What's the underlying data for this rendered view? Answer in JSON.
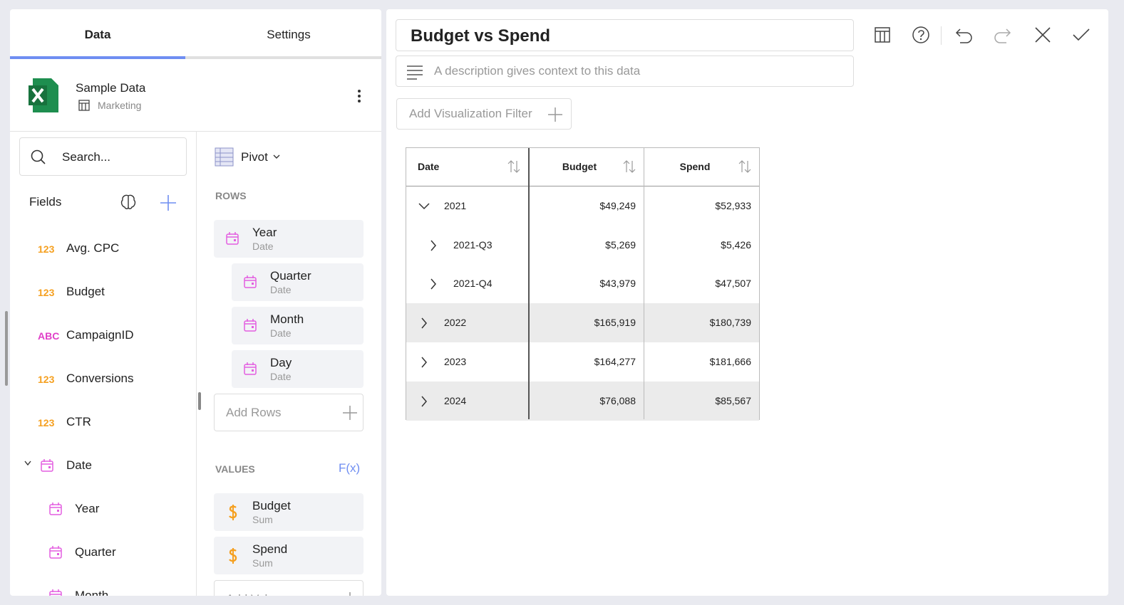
{
  "tabs": [
    "Data",
    "Settings"
  ],
  "source": {
    "name": "Sample Data",
    "table": "Marketing"
  },
  "search_placeholder": "Search...",
  "fields_title": "Fields",
  "fields": [
    {
      "type": "123",
      "name": "Avg. CPC"
    },
    {
      "type": "123",
      "name": "Budget"
    },
    {
      "type": "ABC",
      "name": "CampaignID"
    },
    {
      "type": "123",
      "name": "Conversions"
    },
    {
      "type": "123",
      "name": "CTR"
    },
    {
      "name": "Date",
      "children": [
        "Year",
        "Quarter",
        "Month"
      ]
    }
  ],
  "pivot": {
    "label": "Pivot",
    "rows_title": "ROWS",
    "rows": [
      {
        "name": "Year",
        "sub": "Date"
      },
      {
        "name": "Quarter",
        "sub": "Date"
      },
      {
        "name": "Month",
        "sub": "Date"
      },
      {
        "name": "Day",
        "sub": "Date"
      }
    ],
    "add_rows": "Add Rows",
    "values_title": "VALUES",
    "fx": "F(x)",
    "values": [
      {
        "name": "Budget",
        "sub": "Sum"
      },
      {
        "name": "Spend",
        "sub": "Sum"
      }
    ],
    "add_values": "Add Values"
  },
  "title": "Budget vs Spend",
  "description_placeholder": "A description gives context to this data",
  "filter": "Add Visualization Filter",
  "table": {
    "headers": [
      "Date",
      "Budget",
      "Spend"
    ],
    "rows": [
      {
        "level": 0,
        "expanded": true,
        "cells": [
          "2021",
          "$49,249",
          "$52,933"
        ]
      },
      {
        "level": 1,
        "cells": [
          "2021-Q3",
          "$5,269",
          "$5,426"
        ]
      },
      {
        "level": 1,
        "cells": [
          "2021-Q4",
          "$43,979",
          "$47,507"
        ]
      },
      {
        "level": 0,
        "cells": [
          "2022",
          "$165,919",
          "$180,739"
        ]
      },
      {
        "level": 0,
        "cells": [
          "2023",
          "$164,277",
          "$181,666"
        ]
      },
      {
        "level": 0,
        "cells": [
          "2024",
          "$76,088",
          "$85,567"
        ]
      }
    ]
  }
}
